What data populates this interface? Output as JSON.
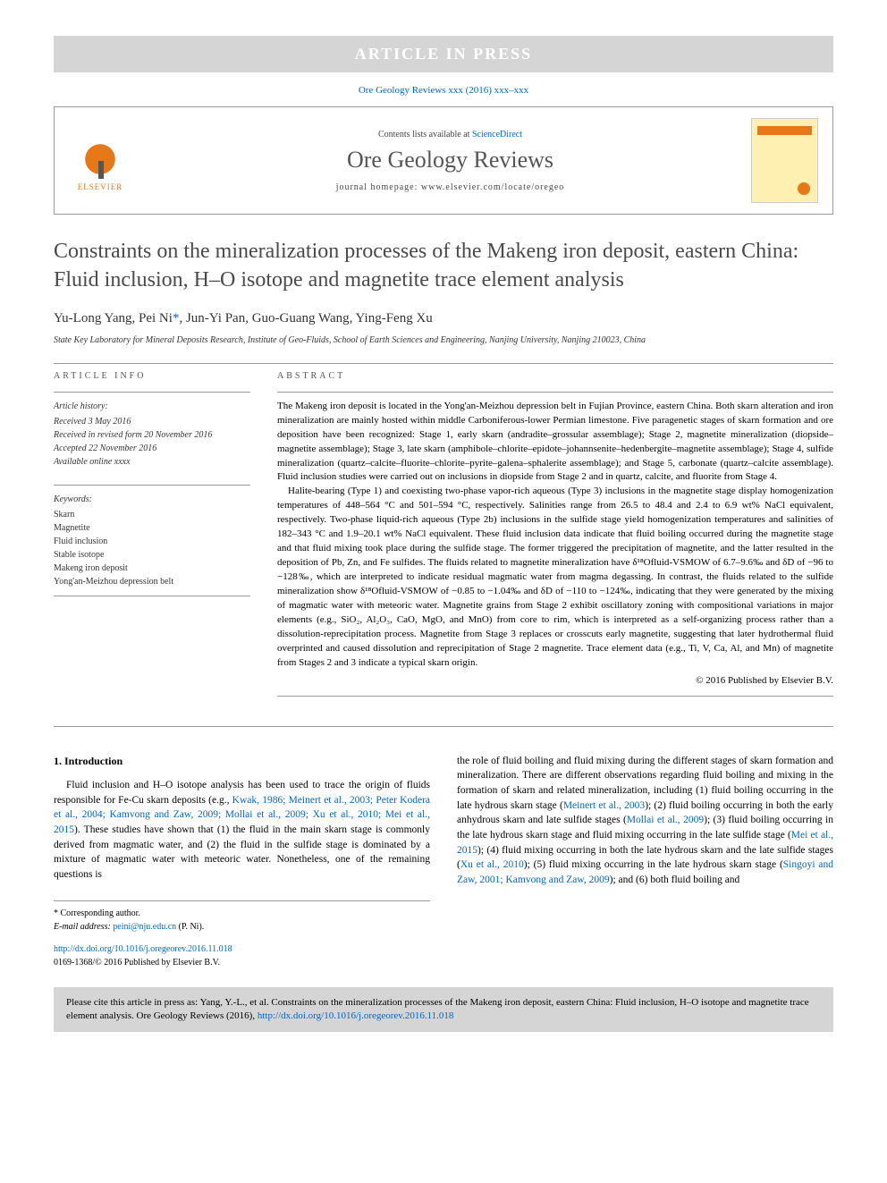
{
  "banner": "ARTICLE IN PRESS",
  "top_citation": {
    "journal_link_text": "Ore Geology Reviews xxx (2016) xxx–xxx",
    "journal_link_color": "#0066cc"
  },
  "header": {
    "elsevier_label": "ELSEVIER",
    "contents_prefix": "Contents lists available at ",
    "contents_link": "ScienceDirect",
    "journal_name": "Ore Geology Reviews",
    "homepage_prefix": "journal homepage: ",
    "homepage": "www.elsevier.com/locate/oregeo"
  },
  "title": "Constraints on the mineralization processes of the Makeng iron deposit, eastern China: Fluid inclusion, H–O isotope and magnetite trace element analysis",
  "authors": {
    "list": "Yu-Long Yang, Pei Ni",
    "corr_mark": "*",
    "rest": ", Jun-Yi Pan, Guo-Guang Wang, Ying-Feng Xu"
  },
  "affiliation": "State Key Laboratory for Mineral Deposits Research, Institute of Geo-Fluids, School of Earth Sciences and Engineering, Nanjing University, Nanjing 210023, China",
  "info_left": {
    "label": "ARTICLE INFO",
    "history_label": "Article history:",
    "history": [
      "Received 3 May 2016",
      "Received in revised form 20 November 2016",
      "Accepted 22 November 2016",
      "Available online xxxx"
    ],
    "keywords_label": "Keywords:",
    "keywords": [
      "Skarn",
      "Magnetite",
      "Fluid inclusion",
      "Stable isotope",
      "Makeng iron deposit",
      "Yong'an-Meizhou depression belt"
    ]
  },
  "abstract": {
    "label": "ABSTRACT",
    "p1": "The Makeng iron deposit is located in the Yong'an-Meizhou depression belt in Fujian Province, eastern China. Both skarn alteration and iron mineralization are mainly hosted within middle Carboniferous-lower Permian limestone. Five paragenetic stages of skarn formation and ore deposition have been recognized: Stage 1, early skarn (andradite–grossular assemblage); Stage 2, magnetite mineralization (diopside–magnetite assemblage); Stage 3, late skarn (amphibole–chlorite–epidote–johannsenite–hedenbergite–magnetite assemblage); Stage 4, sulfide mineralization (quartz–calcite–fluorite–chlorite–pyrite–galena–sphalerite assemblage); and Stage 5, carbonate (quartz–calcite assemblage). Fluid inclusion studies were carried out on inclusions in diopside from Stage 2 and in quartz, calcite, and fluorite from Stage 4.",
    "p2": "Halite-bearing (Type 1) and coexisting two-phase vapor-rich aqueous (Type 3) inclusions in the magnetite stage display homogenization temperatures of 448–564 °C and 501–594 °C, respectively. Salinities range from 26.5 to 48.4 and 2.4 to 6.9 wt% NaCl equivalent, respectively. Two-phase liquid-rich aqueous (Type 2b) inclusions in the sulfide stage yield homogenization temperatures and salinities of 182–343 °C and 1.9–20.1 wt% NaCl equivalent. These fluid inclusion data indicate that fluid boiling occurred during the magnetite stage and that fluid mixing took place during the sulfide stage. The former triggered the precipitation of magnetite, and the latter resulted in the deposition of Pb, Zn, and Fe sulfides. The fluids related to magnetite mineralization have δ¹⁸Ofluid-VSMOW of 6.7–9.6‰ and δD of −96 to −128‰, which are interpreted to indicate residual magmatic water from magma degassing. In contrast, the fluids related to the sulfide mineralization show δ¹⁸Ofluid-VSMOW of −0.85 to −1.04‰ and δD of −110 to −124‰, indicating that they were generated by the mixing of magmatic water with meteoric water. Magnetite grains from Stage 2 exhibit oscillatory zoning with compositional variations in major elements (e.g., SiO₂, Al₂O₃, CaO, MgO, and MnO) from core to rim, which is interpreted as a self-organizing process rather than a dissolution-reprecipitation process. Magnetite from Stage 3 replaces or crosscuts early magnetite, suggesting that later hydrothermal fluid overprinted and caused dissolution and reprecipitation of Stage 2 magnetite. Trace element data (e.g., Ti, V, Ca, Al, and Mn) of magnetite from Stages 2 and 3 indicate a typical skarn origin.",
    "copyright": "© 2016 Published by Elsevier B.V."
  },
  "intro": {
    "heading": "1. Introduction",
    "col1_p1_a": "Fluid inclusion and H–O isotope analysis has been used to trace the origin of fluids responsible for Fe-Cu skarn deposits (e.g., ",
    "col1_refs": "Kwak, 1986; Meinert et al., 2003; Peter Kodera et al., 2004; Kamvong and Zaw, 2009; Mollai et al., 2009; Xu et al., 2010; Mei et al., 2015",
    "col1_p1_b": "). These studies have shown that (1) the fluid in the main skarn stage is commonly derived from magmatic water, and (2) the fluid in the sulfide stage is dominated by a mixture of magmatic water with meteoric water. Nonetheless, one of the remaining questions is",
    "col2_a": "the role of fluid boiling and fluid mixing during the different stages of skarn formation and mineralization. There are different observations regarding fluid boiling and mixing in the formation of skarn and related mineralization, including (1) fluid boiling occurring in the late hydrous skarn stage (",
    "col2_ref1": "Meinert et al., 2003",
    "col2_b": "); (2) fluid boiling occurring in both the early anhydrous skarn and late sulfide stages (",
    "col2_ref2": "Mollai et al., 2009",
    "col2_c": "); (3) fluid boiling occurring in the late hydrous skarn stage and fluid mixing occurring in the late sulfide stage (",
    "col2_ref3": "Mei et al., 2015",
    "col2_d": "); (4) fluid mixing occurring in both the late hydrous skarn and the late sulfide stages (",
    "col2_ref4": "Xu et al., 2010",
    "col2_e": "); (5) fluid mixing occurring in the late hydrous skarn stage (",
    "col2_ref5": "Singoyi and Zaw, 2001; Kamvong and Zaw, 2009",
    "col2_f": "); and (6) both fluid boiling and"
  },
  "footnote": {
    "corr_label": "* Corresponding author.",
    "email_prefix": "E-mail address: ",
    "email": "peini@nju.edu.cn",
    "email_suffix": " (P. Ni)."
  },
  "doi": {
    "url": "http://dx.doi.org/10.1016/j.oregeorev.2016.11.018",
    "issn_line": "0169-1368/© 2016 Published by Elsevier B.V."
  },
  "citebox": {
    "text_a": "Please cite this article in press as: Yang, Y.-L., et al. Constraints on the mineralization processes of the Makeng iron deposit, eastern China: Fluid inclusion, H–O isotope and magnetite trace element analysis. Ore Geology Reviews (2016), ",
    "link": "http://dx.doi.org/10.1016/j.oregeorev.2016.11.018"
  },
  "colors": {
    "banner_bg": "#d5d5d5",
    "link": "#0066cc",
    "elsevier_orange": "#e67817",
    "text": "#000000"
  }
}
